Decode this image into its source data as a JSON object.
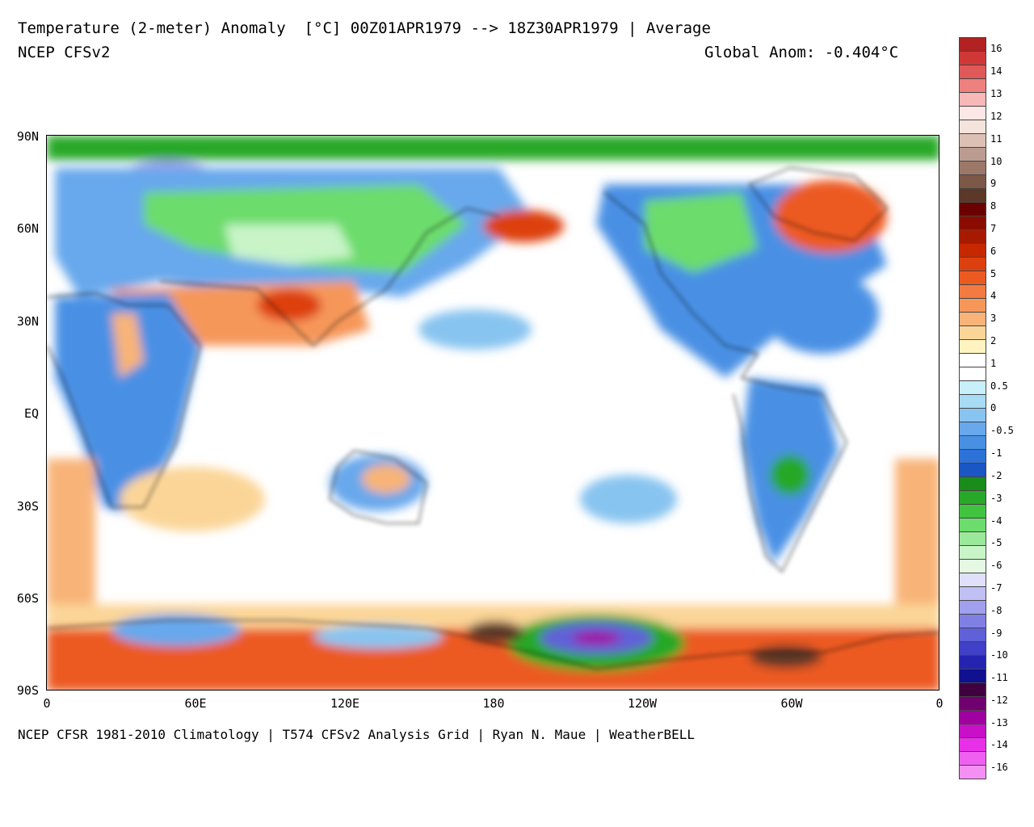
{
  "header": {
    "title_line1": "Temperature (2-meter) Anomaly  [°C] 00Z01APR1979 --> 18Z30APR1979 | Average",
    "title_line2": "NCEP CFSv2",
    "global_anomaly": "Global Anom: -0.404°C"
  },
  "footer": {
    "credits": "NCEP CFSR 1981-2010 Climatology | T574 CFSv2 Analysis Grid | Ryan N. Maue | WeatherBELL"
  },
  "map": {
    "lat_labels": [
      "90N",
      "60N",
      "30N",
      "EQ",
      "30S",
      "60S",
      "90S"
    ],
    "lon_labels": [
      "0",
      "60E",
      "120E",
      "180",
      "120W",
      "60W",
      "0"
    ]
  },
  "colorbar": {
    "labels": [
      "16",
      "14",
      "13",
      "12",
      "11",
      "10",
      "9",
      "8",
      "7",
      "6",
      "5",
      "4",
      "3",
      "2",
      "1",
      "0.5",
      "0",
      "-0.5",
      "-1",
      "-2",
      "-3",
      "-4",
      "-5",
      "-6",
      "-7",
      "-8",
      "-9",
      "-10",
      "-11",
      "-12",
      "-13",
      "-14",
      "-16"
    ],
    "colors": [
      "#b22222",
      "#d03838",
      "#e05858",
      "#ee8080",
      "#f8b8b8",
      "#fde6e6",
      "#f4e4dc",
      "#dcc0b4",
      "#bc9c90",
      "#9c7868",
      "#7c5848",
      "#5c3828",
      "#6a0000",
      "#8a0c00",
      "#a81a00",
      "#c62800",
      "#dd4010",
      "#ec5a20",
      "#f37a40",
      "#f6975a",
      "#f8b478",
      "#fbd598",
      "#fff4c0",
      "#ffffff",
      "#ffffff",
      "#c8f0fa",
      "#a8dcf4",
      "#88c4f0",
      "#68a8ec",
      "#4890e4",
      "#2c72d8",
      "#1a56c4",
      "#1a8c1a",
      "#28a828",
      "#40c440",
      "#6cdc6c",
      "#9ae89a",
      "#c8f4c8",
      "#e4f8e4",
      "#e0e0fa",
      "#c0c0f4",
      "#a0a0ee",
      "#8080e4",
      "#6060d8",
      "#4040c8",
      "#2424b0",
      "#101090",
      "#400040",
      "#700070",
      "#a000a0",
      "#c810c8",
      "#e830e8",
      "#f060f0",
      "#f490f4"
    ]
  }
}
